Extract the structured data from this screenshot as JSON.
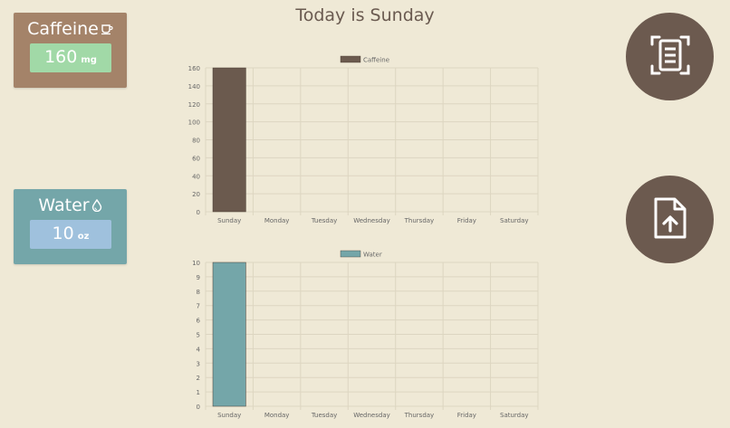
{
  "header": {
    "title": "Today is Sunday"
  },
  "caffeine_card": {
    "label": "Caffeine",
    "value": "160",
    "unit": "mg",
    "icon": "coffee-cup-icon"
  },
  "water_card": {
    "label": "Water",
    "value": "10",
    "unit": "oz",
    "icon": "water-drop-icon"
  },
  "buttons": {
    "scan_icon": "scan-document-icon",
    "upload_icon": "file-upload-icon"
  },
  "colors": {
    "background": "#efe9d6",
    "caffeine": "#6b5a4e",
    "water": "#74a6a9"
  },
  "chart_data": [
    {
      "type": "bar",
      "categories": [
        "Sunday",
        "Monday",
        "Tuesday",
        "Wednesday",
        "Thursday",
        "Friday",
        "Saturday"
      ],
      "series": [
        {
          "name": "Caffeine",
          "values": [
            160,
            0,
            0,
            0,
            0,
            0,
            0
          ],
          "color": "#6b5a4e"
        }
      ],
      "ylim": [
        0,
        160
      ],
      "yticks": [
        0,
        20,
        40,
        60,
        80,
        100,
        120,
        140,
        160
      ],
      "legend": "top-center",
      "grid": true
    },
    {
      "type": "bar",
      "categories": [
        "Sunday",
        "Monday",
        "Tuesday",
        "Wednesday",
        "Thursday",
        "Friday",
        "Saturday"
      ],
      "series": [
        {
          "name": "Water",
          "values": [
            10,
            0,
            0,
            0,
            0,
            0,
            0
          ],
          "color": "#74a6a9"
        }
      ],
      "ylim": [
        0,
        10
      ],
      "yticks": [
        0,
        1,
        2,
        3,
        4,
        5,
        6,
        7,
        8,
        9,
        10
      ],
      "legend": "top-center",
      "grid": true
    }
  ]
}
